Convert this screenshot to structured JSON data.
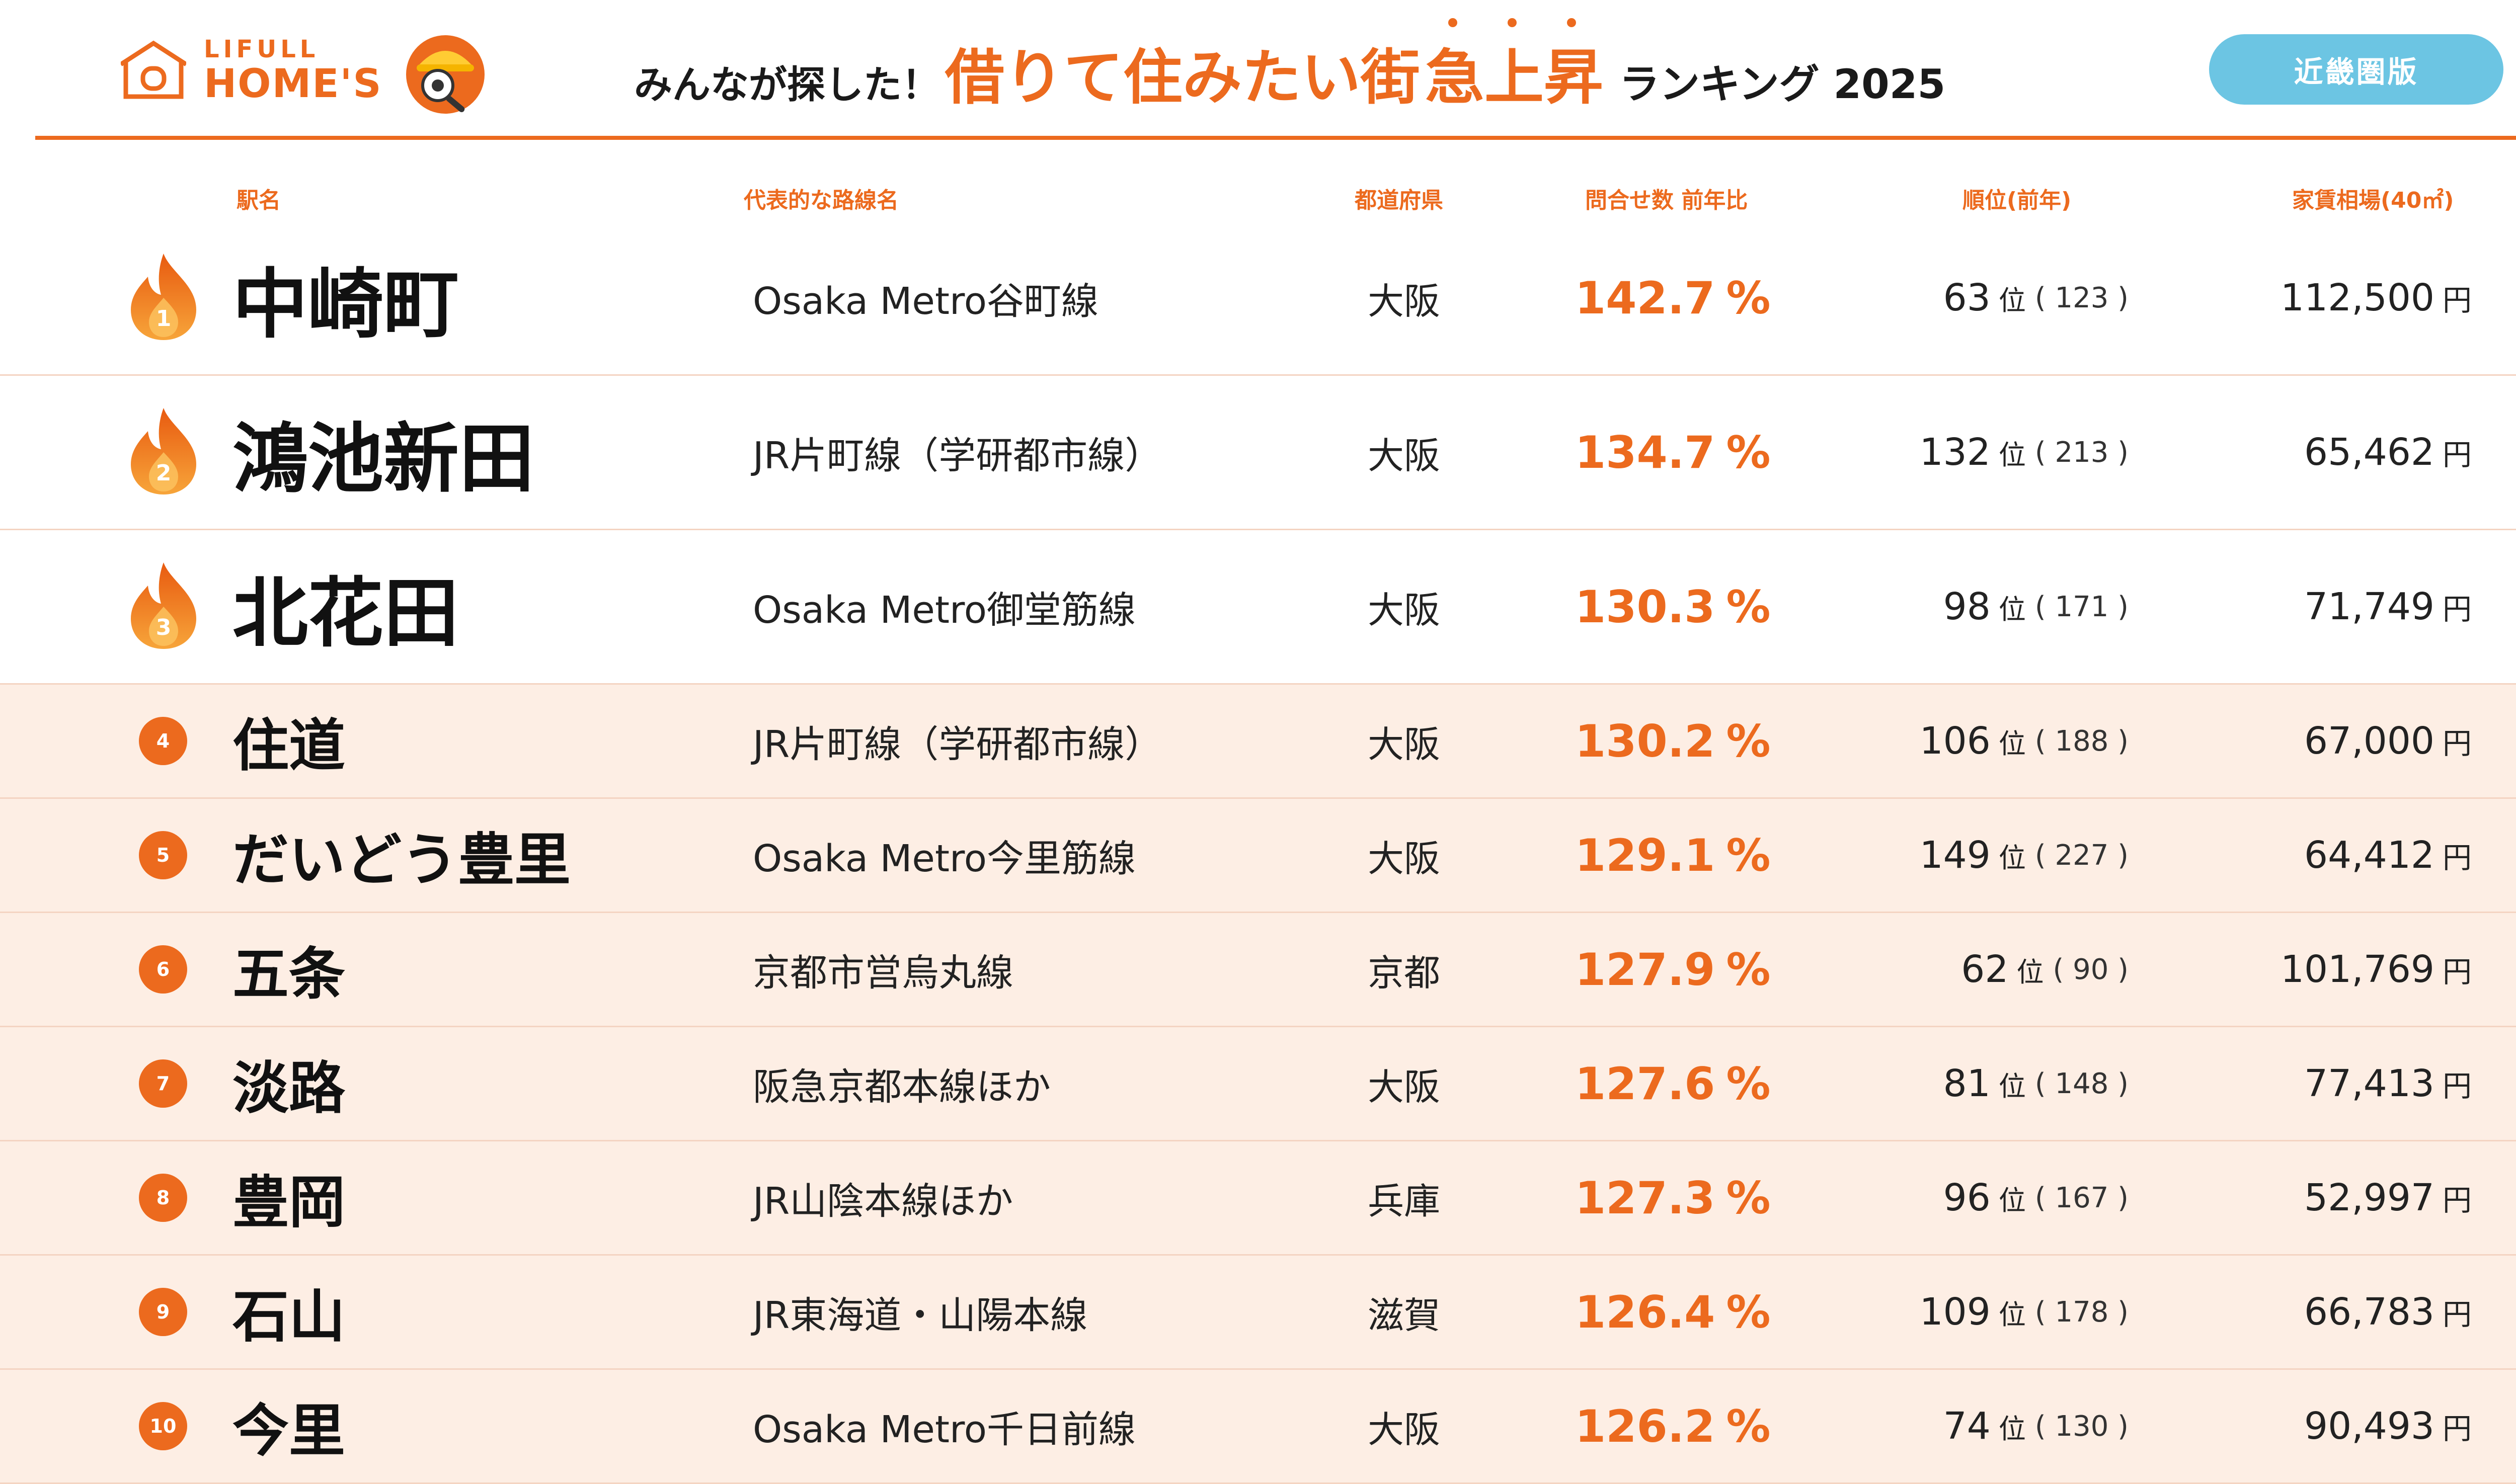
{
  "logo": {
    "line1": "LIFULL",
    "line2": "HOME'S"
  },
  "title": {
    "prefix": "みんなが探した！",
    "main": "借りて住みたい街",
    "accent": "急上昇",
    "suffix": "ランキング 2025"
  },
  "region_badge": "近畿圏版",
  "columns": {
    "station": "駅名",
    "line": "代表的な路線名",
    "prefecture": "都道府県",
    "ratio": "問合せ数 前年比",
    "rank": "順位(前年)",
    "rent": "家賃相場(40㎡)"
  },
  "units": {
    "percent": "%",
    "rank": "位",
    "yen": "円"
  },
  "colors": {
    "accent": "#ec6a1e",
    "badge": "#6cc5e3",
    "row_highlight": "#fdeee4"
  },
  "rows": [
    {
      "rank": "1",
      "station": "中崎町",
      "line": "Osaka Metro谷町線",
      "prefecture": "大阪",
      "ratio": "142.7",
      "current_rank": "63",
      "prev_rank": "( 123 )",
      "rent": "112,500"
    },
    {
      "rank": "2",
      "station": "鴻池新田",
      "line": "JR片町線（学研都市線）",
      "prefecture": "大阪",
      "ratio": "134.7",
      "current_rank": "132",
      "prev_rank": "( 213 )",
      "rent": "65,462"
    },
    {
      "rank": "3",
      "station": "北花田",
      "line": "Osaka Metro御堂筋線",
      "prefecture": "大阪",
      "ratio": "130.3",
      "current_rank": "98",
      "prev_rank": "( 171 )",
      "rent": "71,749"
    },
    {
      "rank": "4",
      "station": "住道",
      "line": "JR片町線（学研都市線）",
      "prefecture": "大阪",
      "ratio": "130.2",
      "current_rank": "106",
      "prev_rank": "( 188 )",
      "rent": "67,000"
    },
    {
      "rank": "5",
      "station": "だいどう豊里",
      "line": "Osaka Metro今里筋線",
      "prefecture": "大阪",
      "ratio": "129.1",
      "current_rank": "149",
      "prev_rank": "( 227 )",
      "rent": "64,412"
    },
    {
      "rank": "6",
      "station": "五条",
      "line": "京都市営烏丸線",
      "prefecture": "京都",
      "ratio": "127.9",
      "current_rank": "62",
      "prev_rank": "(  90  )",
      "rent": "101,769"
    },
    {
      "rank": "7",
      "station": "淡路",
      "line": "阪急京都本線ほか",
      "prefecture": "大阪",
      "ratio": "127.6",
      "current_rank": "81",
      "prev_rank": "( 148 )",
      "rent": "77,413"
    },
    {
      "rank": "8",
      "station": "豊岡",
      "line": "JR山陰本線ほか",
      "prefecture": "兵庫",
      "ratio": "127.3",
      "current_rank": "96",
      "prev_rank": "( 167 )",
      "rent": "52,997"
    },
    {
      "rank": "9",
      "station": "石山",
      "line": "JR東海道・山陽本線",
      "prefecture": "滋賀",
      "ratio": "126.4",
      "current_rank": "109",
      "prev_rank": "( 178 )",
      "rent": "66,783"
    },
    {
      "rank": "10",
      "station": "今里",
      "line": "Osaka Metro千日前線",
      "prefecture": "大阪",
      "ratio": "126.2",
      "current_rank": "74",
      "prev_rank": "( 130 )",
      "rent": "90,493"
    }
  ]
}
